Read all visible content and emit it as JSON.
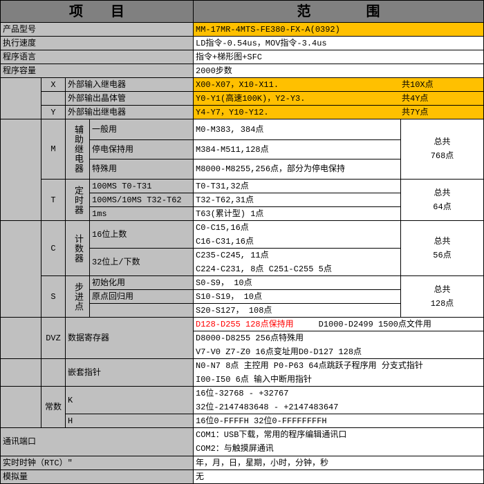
{
  "header": {
    "item": "项　　目",
    "range": "范　　　　围"
  },
  "rows": {
    "model": {
      "label": "产品型号",
      "value": "MM-17MR-4MTS-FE380-FX-A(0392)"
    },
    "speed": {
      "label": "执行速度",
      "value": "LD指令-0.54us，MOV指令-3.4us"
    },
    "language": {
      "label": "程序语言",
      "value": "指令+梯形图+SFC"
    },
    "capacity": {
      "label": "程序容量",
      "value": "2000步数"
    }
  },
  "io": [
    {
      "code": "X",
      "label": "外部输入继电器",
      "value": "X00-X07，X10-X11.",
      "total": "共10X点"
    },
    {
      "code": "",
      "label": "外部输出晶体管",
      "value": "Y0-Y1(高速100K)，Y2-Y3.",
      "total": "共4Y点"
    },
    {
      "code": "Y",
      "label": "外部输出继电器",
      "value": "Y4-Y7，Y10-Y12.",
      "total": "共7Y点"
    }
  ],
  "m": {
    "code": "M",
    "name": "辅助继电器",
    "total": "总共\n768点",
    "items": [
      {
        "label": "一般用",
        "value": "M0-M383, 384点"
      },
      {
        "label": "停电保持用",
        "value": "M384-M511,128点"
      },
      {
        "label": "特殊用",
        "value": "M8000-M8255,256点，部分为停电保持"
      }
    ]
  },
  "t": {
    "code": "T",
    "name": "定时器",
    "total": "总共\n64点",
    "items": [
      {
        "label": "100MS T0-T31",
        "value": "T0-T31,32点"
      },
      {
        "label": "100MS/10MS T32-T62",
        "value": "T32-T62,31点"
      },
      {
        "label": "1ms",
        "value": "T63(累计型) 1点"
      }
    ]
  },
  "c": {
    "code": "C",
    "name": "计数器",
    "total": "总共\n56点",
    "items": [
      {
        "label": "16位上数",
        "value": "C0-C15,16点\nC16-C31,16点"
      },
      {
        "label": "32位上/下数",
        "value": "C235-C245,   11点\nC224-C231,   8点  C251-C255  5点"
      }
    ]
  },
  "s": {
    "code": "S",
    "name": "步进点",
    "total": "总共\n128点",
    "items": [
      {
        "label": "初始化用",
        "value": "S0-S9，   10点"
      },
      {
        "label": "原点回归用",
        "value": "S10-S19，   10点"
      },
      {
        "label": "",
        "value": "S20-S127，   108点"
      }
    ]
  },
  "dvz": {
    "code": "DVZ",
    "label": "数据寄存器",
    "line1_red": "D128-D255 128点保持用",
    "line1_black": "D1000-D2499 1500点文件用",
    "line2": "D8000-D8255 256点特殊用\nV7-V0 Z7-Z0 16点变址用D0-D127 128点"
  },
  "nest": {
    "label": "嵌套指针",
    "value": "N0-N7 8点 主控用     P0-P63 64点跳跃子程序用 分支式指针\nI00-I50 6点 输入中断用指针"
  },
  "const": {
    "label": "常数",
    "k": {
      "label": "K",
      "value": "16位-32768 - +32767\n32位-2147483648 - +2147483647"
    },
    "h": {
      "label": "H",
      "value": "16位0-FFFFH 32位0-FFFFFFFFH"
    }
  },
  "comm": {
    "label": "通讯端口",
    "value": "COM1：USB下载，常用的程序编辑通讯口\nCOM2：与触摸屏通讯"
  },
  "rtc": {
    "label": "实时时钟（RTC）″",
    "value": "年，月，日，星期，小时，分钟，秒"
  },
  "analog": {
    "label": "模拟量",
    "value": "无"
  },
  "colors": {
    "header": "#808080",
    "label": "#c0c0c0",
    "highlight": "#ffc000",
    "red_text": "#ff0000"
  }
}
